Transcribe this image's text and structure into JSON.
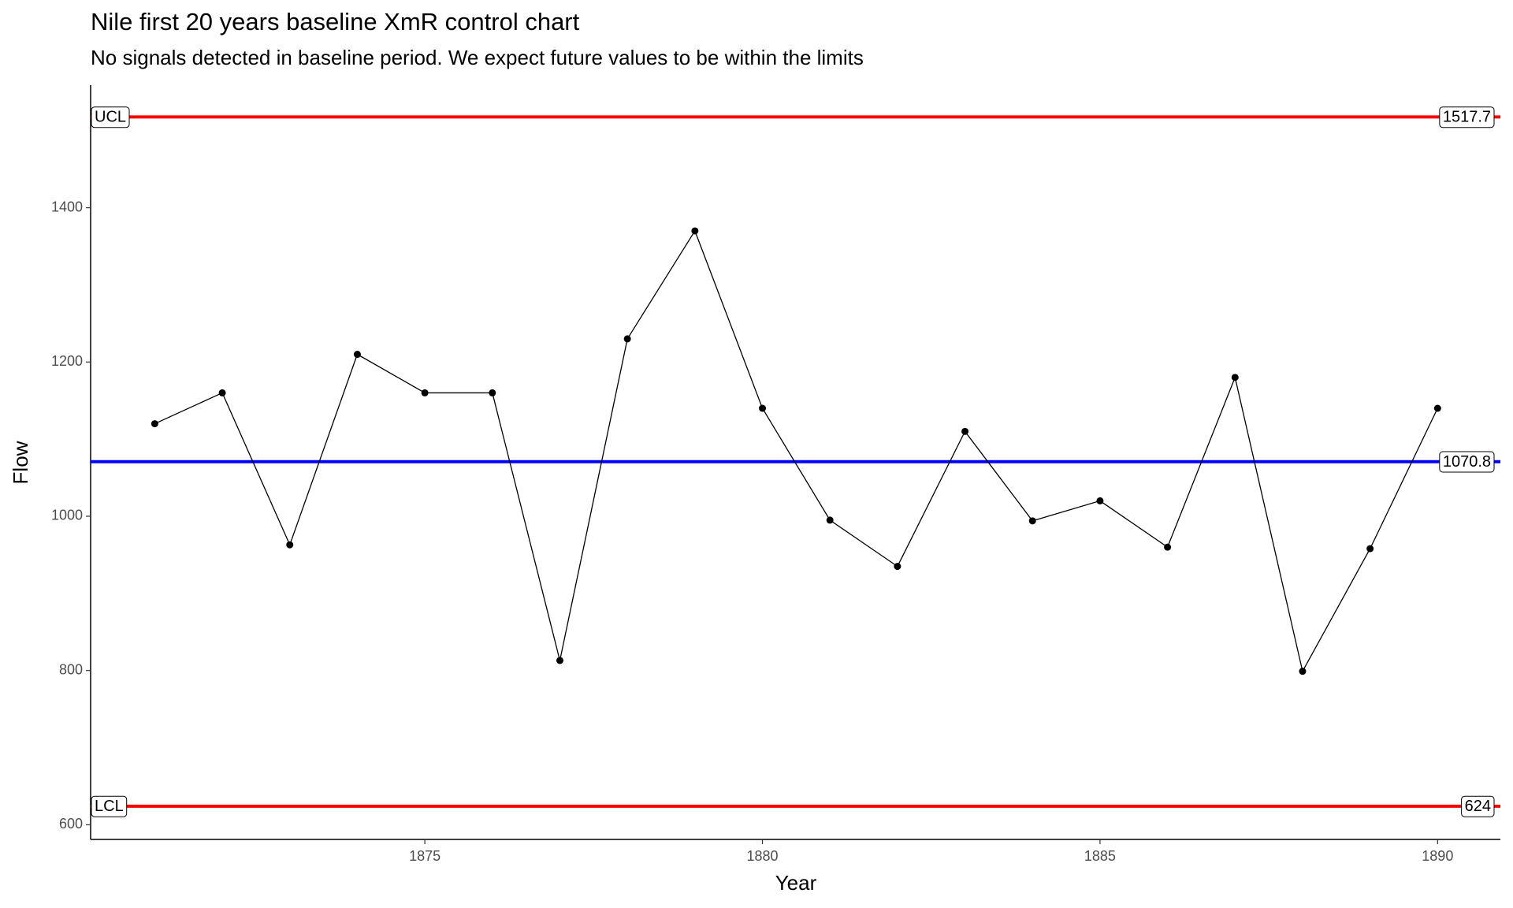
{
  "chart_data": {
    "type": "line",
    "title": "Nile first 20 years baseline XmR control chart",
    "subtitle": "No signals detected in baseline period. We expect future values to be within the limits",
    "xlabel": "Year",
    "ylabel": "Flow",
    "x": [
      1871,
      1872,
      1873,
      1874,
      1875,
      1876,
      1877,
      1878,
      1879,
      1880,
      1881,
      1882,
      1883,
      1884,
      1885,
      1886,
      1887,
      1888,
      1889,
      1890
    ],
    "values": [
      1120,
      1160,
      963,
      1210,
      1160,
      1160,
      813,
      1230,
      1370,
      1140,
      995,
      935,
      1110,
      994,
      1020,
      960,
      1180,
      799,
      958,
      1140
    ],
    "color": "#000000",
    "limits": [
      {
        "label": "UCL",
        "value": 1517.7,
        "color": "#ff0000"
      },
      {
        "value": 1070.8,
        "color": "#0000ff"
      },
      {
        "label": "LCL",
        "value": 624,
        "color": "#ff0000"
      }
    ],
    "xlim": [
      1870.05,
      1890.93
    ],
    "xticks": [
      1875,
      1880,
      1885,
      1890
    ],
    "ylim": [
      581,
      1559
    ],
    "yticks": [
      600,
      800,
      1000,
      1200,
      1400
    ],
    "grid": false
  }
}
